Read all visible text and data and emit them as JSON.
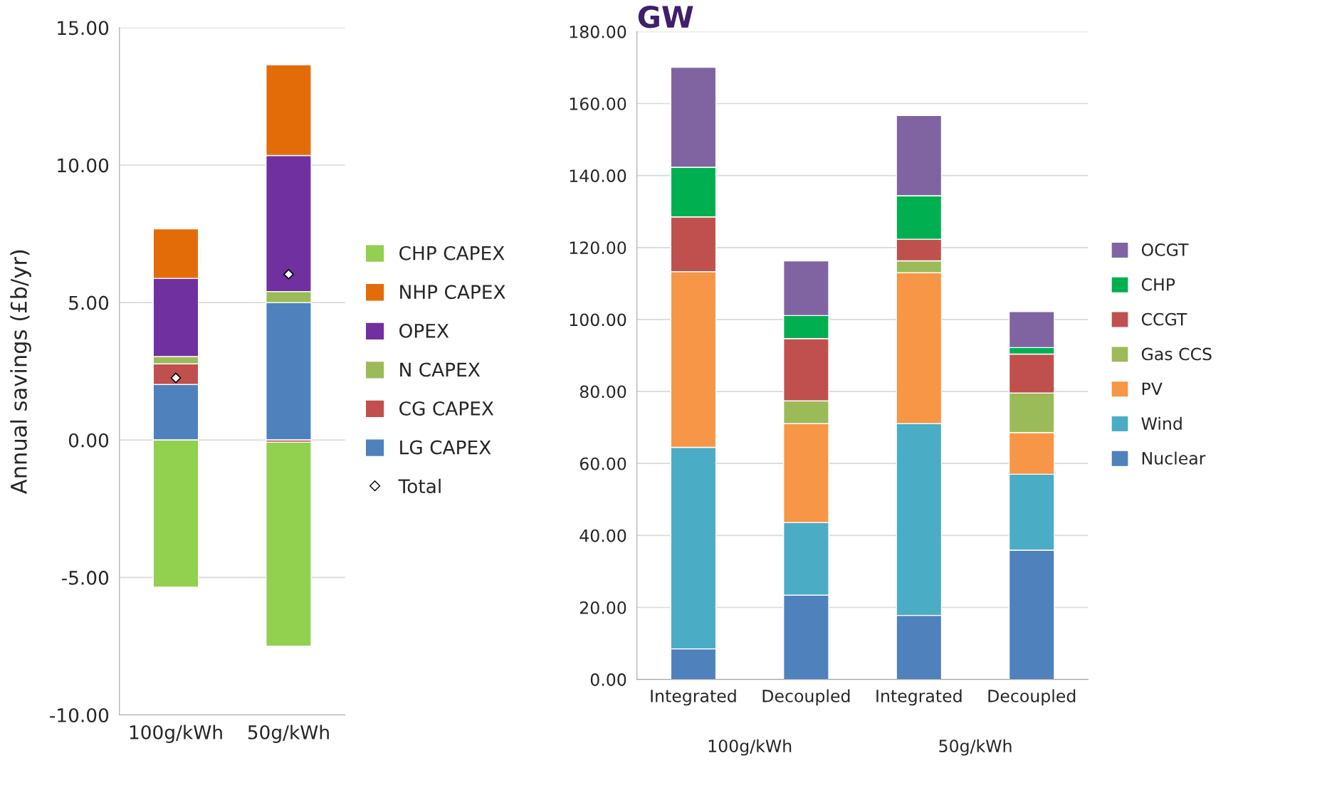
{
  "chart_data": [
    {
      "type": "bar",
      "stacked": true,
      "ylabel": "Annual savings (£b/yr)",
      "categories": [
        "100g/kWh",
        "50g/kWh"
      ],
      "series": [
        {
          "name": "LG CAPEX",
          "color": "#4f81bd",
          "values": [
            2.02,
            5.0
          ]
        },
        {
          "name": "CG CAPEX",
          "color": "#c0504d",
          "values": [
            0.75,
            -0.08
          ]
        },
        {
          "name": "N CAPEX",
          "color": "#9bbb59",
          "values": [
            0.27,
            0.4
          ]
        },
        {
          "name": "OPEX",
          "color": "#7030a0",
          "values": [
            2.84,
            4.95
          ]
        },
        {
          "name": "NHP CAPEX",
          "color": "#e36c09",
          "values": [
            1.8,
            3.3
          ]
        },
        {
          "name": "CHP CAPEX",
          "color": "#92d050",
          "values": [
            -5.35,
            -7.42
          ]
        },
        {
          "name": "Total",
          "type": "scatter",
          "marker": "diamond",
          "color": "#ffffff",
          "values": [
            2.26,
            6.03
          ]
        }
      ],
      "ylim": [
        -10,
        15
      ],
      "yticks": [
        {
          "value": -10,
          "label": "-10.00"
        },
        {
          "value": -5,
          "label": "-5.00"
        },
        {
          "value": 0,
          "label": "0.00"
        },
        {
          "value": 5,
          "label": "5.00"
        },
        {
          "value": 10,
          "label": "10.00"
        },
        {
          "value": 15,
          "label": "15.00"
        }
      ],
      "grid": "y",
      "legend": "right"
    },
    {
      "type": "bar",
      "stacked": true,
      "title": "GW",
      "categories": [
        "Integrated",
        "Decoupled",
        "Integrated",
        "Decoupled"
      ],
      "annotations": [
        "100g/kWh",
        "50g/kWh"
      ],
      "series": [
        {
          "name": "Nuclear",
          "color": "#4f81bd",
          "values": [
            8.5,
            23.4,
            17.8,
            35.9
          ]
        },
        {
          "name": "Wind",
          "color": "#4bacc6",
          "values": [
            56.0,
            20.2,
            53.3,
            21.1
          ]
        },
        {
          "name": "PV",
          "color": "#f79646",
          "values": [
            48.8,
            27.5,
            41.9,
            11.6
          ]
        },
        {
          "name": "Gas CCS",
          "color": "#9bbb59",
          "values": [
            0,
            6.3,
            3.3,
            11.0
          ]
        },
        {
          "name": "CCGT",
          "color": "#c0504d",
          "values": [
            15.2,
            17.3,
            6.0,
            10.8
          ]
        },
        {
          "name": "CHP",
          "color": "#00b050",
          "values": [
            13.8,
            6.4,
            12.1,
            1.8
          ]
        },
        {
          "name": "OCGT",
          "color": "#8064a2",
          "values": [
            27.8,
            15.2,
            22.3,
            10.0
          ]
        }
      ],
      "ylim": [
        0,
        180
      ],
      "yticks": [
        {
          "value": 0,
          "label": "0.00"
        },
        {
          "value": 20,
          "label": "20.00"
        },
        {
          "value": 40,
          "label": "40.00"
        },
        {
          "value": 60,
          "label": "60.00"
        },
        {
          "value": 80,
          "label": "80.00"
        },
        {
          "value": 100,
          "label": "100.00"
        },
        {
          "value": 120,
          "label": "120.00"
        },
        {
          "value": 140,
          "label": "140.00"
        },
        {
          "value": 160,
          "label": "160.00"
        },
        {
          "value": 180,
          "label": "180.00"
        }
      ],
      "grid": "y",
      "legend": "right"
    }
  ]
}
